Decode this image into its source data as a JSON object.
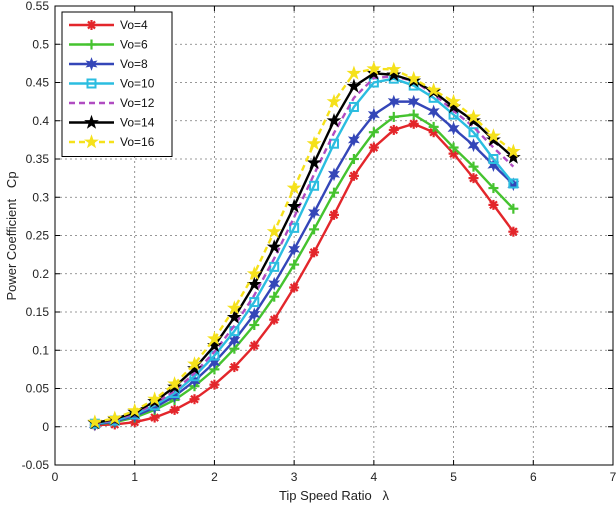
{
  "chart_data": {
    "type": "line",
    "title": "",
    "xlabel": "Tip Speed Ratio   λ",
    "ylabel": "Power Coefficient   Cp",
    "xlim": [
      0,
      7
    ],
    "ylim": [
      -0.05,
      0.55
    ],
    "xticks": [
      "0",
      "1",
      "2",
      "3",
      "4",
      "5",
      "6",
      "7"
    ],
    "yticks": [
      "-0.05",
      "0",
      "0.05",
      "0.1",
      "0.15",
      "0.2",
      "0.25",
      "0.3",
      "0.35",
      "0.4",
      "0.45",
      "0.5",
      "0.55"
    ],
    "grid": true,
    "legend_position": "top-left",
    "x": [
      0.5,
      0.75,
      1.0,
      1.25,
      1.5,
      1.75,
      2.0,
      2.25,
      2.5,
      2.75,
      3.0,
      3.25,
      3.5,
      3.75,
      4.0,
      4.25,
      4.5,
      4.75,
      5.0,
      5.25,
      5.5,
      5.75
    ],
    "series": [
      {
        "name": "Vo=4",
        "color": "#e3262b",
        "marker": "asterisk",
        "line": "solid",
        "values": [
          0.002,
          0.003,
          0.006,
          0.012,
          0.022,
          0.036,
          0.055,
          0.078,
          0.106,
          0.14,
          0.182,
          0.228,
          0.277,
          0.328,
          0.365,
          0.388,
          0.396,
          0.385,
          0.357,
          0.325,
          0.29,
          0.255
        ]
      },
      {
        "name": "Vo=6",
        "color": "#45c32f",
        "marker": "plus",
        "line": "solid",
        "values": [
          0.003,
          0.006,
          0.012,
          0.022,
          0.035,
          0.053,
          0.075,
          0.102,
          0.133,
          0.17,
          0.212,
          0.258,
          0.306,
          0.35,
          0.385,
          0.405,
          0.408,
          0.392,
          0.365,
          0.34,
          0.312,
          0.285
        ]
      },
      {
        "name": "Vo=8",
        "color": "#3446b8",
        "marker": "star6",
        "line": "solid",
        "values": [
          0.003,
          0.007,
          0.014,
          0.025,
          0.04,
          0.06,
          0.084,
          0.113,
          0.147,
          0.187,
          0.232,
          0.28,
          0.33,
          0.375,
          0.408,
          0.425,
          0.425,
          0.412,
          0.39,
          0.368,
          0.342,
          0.317
        ]
      },
      {
        "name": "Vo=10",
        "color": "#2bbde0",
        "marker": "square",
        "line": "solid",
        "values": [
          0.004,
          0.008,
          0.016,
          0.028,
          0.044,
          0.066,
          0.093,
          0.125,
          0.163,
          0.209,
          0.26,
          0.315,
          0.37,
          0.418,
          0.45,
          0.455,
          0.446,
          0.43,
          0.408,
          0.385,
          0.35,
          0.318
        ]
      },
      {
        "name": "Vo=12",
        "color": "#b04bc1",
        "marker": "none",
        "line": "dashed",
        "values": [
          0.004,
          0.009,
          0.017,
          0.03,
          0.047,
          0.07,
          0.098,
          0.132,
          0.172,
          0.22,
          0.274,
          0.33,
          0.384,
          0.43,
          0.456,
          0.458,
          0.452,
          0.435,
          0.413,
          0.392,
          0.365,
          0.34
        ]
      },
      {
        "name": "Vo=14",
        "color": "#000000",
        "marker": "star5",
        "line": "solid",
        "values": [
          0.005,
          0.01,
          0.019,
          0.033,
          0.052,
          0.076,
          0.106,
          0.143,
          0.186,
          0.235,
          0.288,
          0.345,
          0.4,
          0.445,
          0.462,
          0.46,
          0.452,
          0.438,
          0.418,
          0.4,
          0.375,
          0.352
        ]
      },
      {
        "name": "Vo=16",
        "color": "#f5e11b",
        "marker": "star5",
        "line": "dashed",
        "values": [
          0.006,
          0.011,
          0.021,
          0.036,
          0.056,
          0.082,
          0.115,
          0.155,
          0.2,
          0.255,
          0.312,
          0.37,
          0.425,
          0.462,
          0.468,
          0.467,
          0.455,
          0.44,
          0.425,
          0.405,
          0.38,
          0.36
        ]
      }
    ]
  }
}
